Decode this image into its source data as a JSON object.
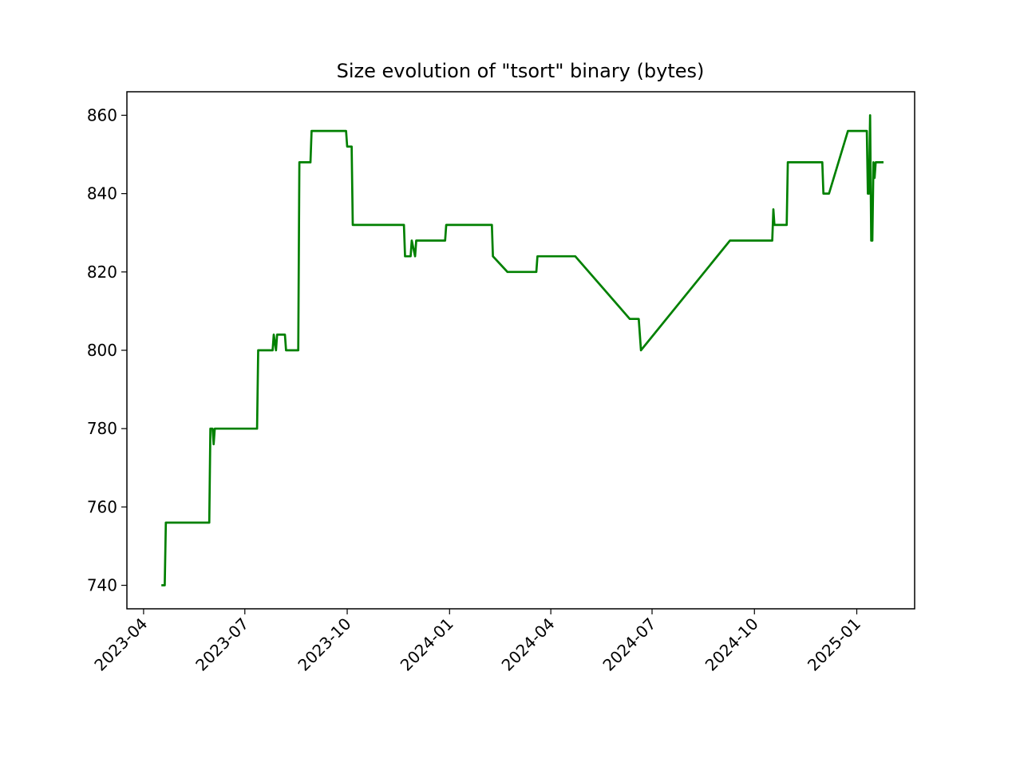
{
  "chart_data": {
    "type": "line",
    "title": "Size evolution of \"tsort\" binary (bytes)",
    "xlabel": "",
    "ylabel": "",
    "x_ticks": [
      "2023-04",
      "2023-07",
      "2023-10",
      "2024-01",
      "2024-04",
      "2024-07",
      "2024-10",
      "2025-01"
    ],
    "y_ticks": [
      740,
      760,
      780,
      800,
      820,
      840,
      860
    ],
    "xlim": [
      "2023-03-17",
      "2025-02-22"
    ],
    "ylim": [
      734,
      866
    ],
    "grid": false,
    "line_color": "#008000",
    "series": [
      {
        "x": [
          "2023-04-17",
          "2023-04-20",
          "2023-04-21",
          "2023-05-30",
          "2023-05-31",
          "2023-06-02",
          "2023-06-03",
          "2023-06-04",
          "2023-07-12",
          "2023-07-13",
          "2023-07-26",
          "2023-07-27",
          "2023-07-29",
          "2023-07-30",
          "2023-08-06",
          "2023-08-07",
          "2023-08-18",
          "2023-08-19",
          "2023-08-29",
          "2023-08-30",
          "2023-09-30",
          "2023-10-01",
          "2023-10-05",
          "2023-10-06",
          "2023-11-21",
          "2023-11-22",
          "2023-11-27",
          "2023-11-28",
          "2023-12-01",
          "2023-12-02",
          "2023-12-28",
          "2023-12-29",
          "2024-02-08",
          "2024-02-09",
          "2024-02-22",
          "2024-03-19",
          "2024-03-20",
          "2024-04-23",
          "2024-06-11",
          "2024-06-19",
          "2024-06-21",
          "2024-09-09",
          "2024-10-17",
          "2024-10-18",
          "2024-10-19",
          "2024-10-20",
          "2024-10-30",
          "2024-10-31",
          "2024-12-01",
          "2024-12-02",
          "2024-12-07",
          "2024-12-24",
          "2025-01-10",
          "2025-01-11",
          "2025-01-12",
          "2025-01-13",
          "2025-01-14",
          "2025-01-15",
          "2025-01-16",
          "2025-01-17",
          "2025-01-18",
          "2025-01-19",
          "2025-01-25"
        ],
        "y": [
          740,
          740,
          756,
          756,
          780,
          780,
          776,
          780,
          780,
          800,
          800,
          804,
          800,
          804,
          804,
          800,
          800,
          848,
          848,
          856,
          856,
          852,
          852,
          832,
          832,
          824,
          824,
          828,
          824,
          828,
          828,
          832,
          832,
          824,
          820,
          820,
          824,
          824,
          808,
          808,
          800,
          828,
          828,
          836,
          832,
          832,
          832,
          848,
          848,
          840,
          840,
          856,
          856,
          840,
          840,
          860,
          828,
          828,
          848,
          844,
          848,
          848,
          848
        ]
      }
    ]
  }
}
